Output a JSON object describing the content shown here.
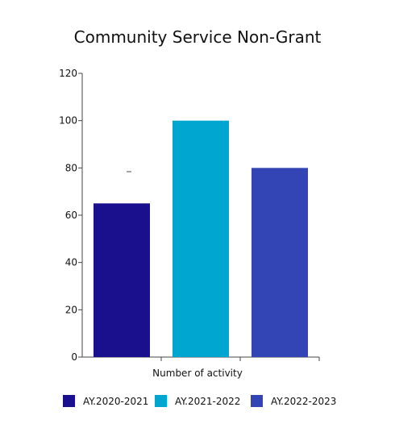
{
  "chart_data": {
    "type": "bar",
    "title": "Community Service Non-Grant",
    "xlabel": "Number of activity",
    "ylabel": "",
    "ylim": [
      0,
      120
    ],
    "yticks": [
      0,
      20,
      40,
      60,
      80,
      100,
      120
    ],
    "grid": false,
    "legend_position": "bottom",
    "series": [
      {
        "name": "AY.2020-2021",
        "value": 65,
        "color": "#1a0f8c"
      },
      {
        "name": "AY.2021-2022",
        "value": 100,
        "color": "#00a6d0"
      },
      {
        "name": "AY.2022-2023",
        "value": 80,
        "color": "#3344b4"
      }
    ]
  }
}
